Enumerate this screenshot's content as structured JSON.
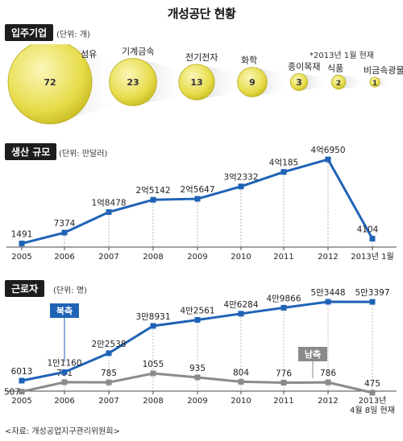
{
  "title": "개성공단 현황",
  "source": "<자료: 개성공업지구관리위원회>",
  "chart_data": [
    {
      "type": "bubble",
      "section": "입주기업",
      "unit": "(단위: 개)",
      "note": "*2013년 1월 현재",
      "categories": [
        "섬유",
        "기계금속",
        "전기전자",
        "화학",
        "종이목재",
        "식품",
        "비금속광물"
      ],
      "values": [
        72,
        23,
        13,
        9,
        3,
        2,
        1
      ]
    },
    {
      "type": "line",
      "section": "생산 규모",
      "unit": "(단위: 만달러)",
      "x": [
        "2005",
        "2006",
        "2007",
        "2008",
        "2009",
        "2010",
        "2011",
        "2012",
        "2013년 1월"
      ],
      "values": [
        1491,
        7374,
        18478,
        25142,
        25647,
        32332,
        40185,
        46950,
        4104
      ],
      "value_labels": [
        "1491",
        "7374",
        "1억8478",
        "2억5142",
        "2억5647",
        "3억2332",
        "4억185",
        "4억6950",
        "4104"
      ],
      "color": "#1f63b6"
    },
    {
      "type": "line",
      "section": "근로자",
      "unit": "(단위: 명)",
      "x": [
        "2005",
        "2006",
        "2007",
        "2008",
        "2009",
        "2010",
        "2011",
        "2012",
        "2013년\n4월 8일 현재"
      ],
      "series": [
        {
          "name": "북측",
          "values": [
            6013,
            11160,
            22538,
            38931,
            42561,
            46284,
            49866,
            53448,
            53397
          ],
          "value_labels": [
            "6013",
            "1만1160",
            "2만2538",
            "3만8931",
            "4만2561",
            "4만6284",
            "4만9866",
            "5만3448",
            "5만3397"
          ],
          "color": "#1f63b6"
        },
        {
          "name": "남측",
          "values": [
            507,
            791,
            785,
            1055,
            935,
            804,
            776,
            786,
            475
          ],
          "value_labels": [
            "507",
            "791",
            "785",
            "1055",
            "935",
            "804",
            "776",
            "786",
            "475"
          ],
          "color": "#8a8a8a"
        }
      ]
    }
  ]
}
